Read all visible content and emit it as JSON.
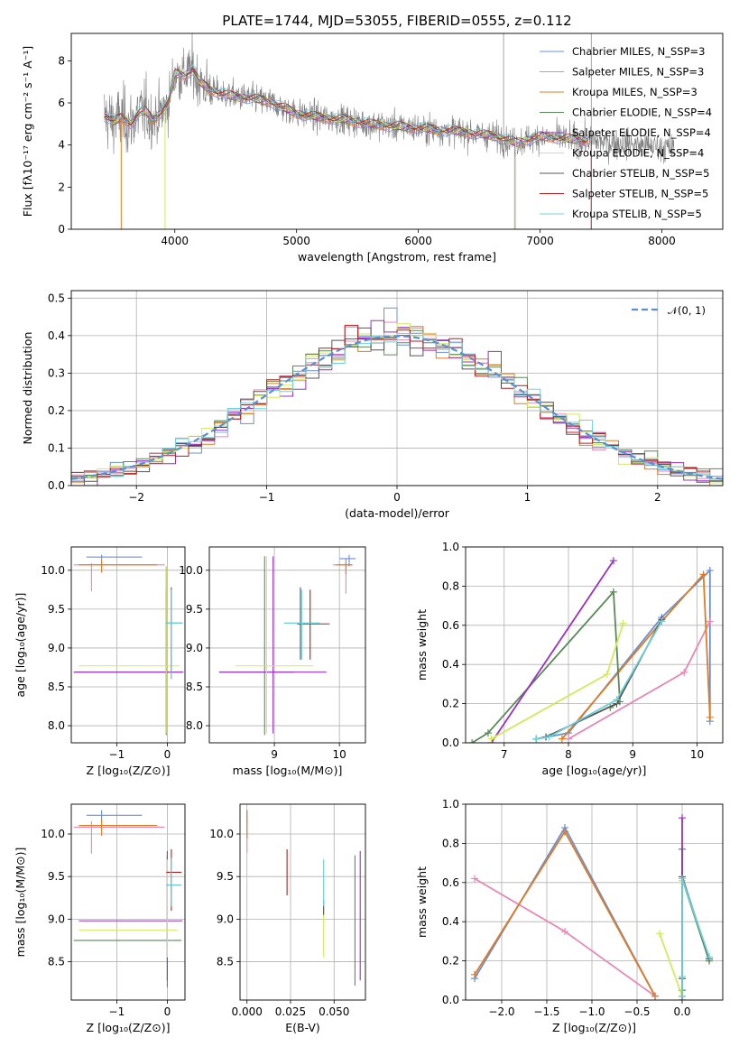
{
  "title": "PLATE=1744, MJD=53055, FIBERID=0555, z=0.112",
  "colors": {
    "spectrum": "#7f7f7f",
    "models": [
      "#6a8fd8",
      "#e887b4",
      "#e07b22",
      "#5a8a58",
      "#9b2fc4",
      "#d2ea5c",
      "#555555",
      "#b21e1e",
      "#6fd0d8"
    ],
    "normal_curve": "#5a8fd8"
  },
  "chart_data": [
    {
      "id": "spectrum",
      "type": "line",
      "xlabel": "wavelength [Angstrom, rest frame]",
      "ylabel": "Flux [fλ10⁻¹⁷ erg cm⁻² s⁻¹ A⁻¹]",
      "xlim": [
        3150,
        8500
      ],
      "ylim": [
        0,
        9.3
      ],
      "xticks": [
        4000,
        5000,
        6000,
        7000,
        8000
      ],
      "yticks": [
        0,
        2,
        4,
        6,
        8
      ],
      "grid": false,
      "legend_position": "top-right",
      "continuum": {
        "x": [
          3420,
          3500,
          3560,
          3640,
          3700,
          3760,
          3820,
          3880,
          3950,
          4000,
          4080,
          4150,
          4200,
          4300,
          4400,
          4500,
          4650,
          4800,
          5000,
          5200,
          5400,
          5600,
          5800,
          6000,
          6200,
          6400,
          6500,
          6600,
          6700,
          6800,
          7000,
          7200,
          7400,
          7600,
          7800,
          8000,
          8100
        ],
        "y": [
          5.4,
          5.1,
          5.3,
          5.0,
          5.5,
          5.6,
          5.2,
          5.5,
          6.0,
          7.4,
          7.3,
          7.6,
          7.0,
          6.6,
          6.4,
          6.3,
          6.2,
          6.0,
          5.5,
          5.3,
          5.2,
          5.0,
          4.9,
          4.8,
          4.7,
          4.6,
          4.5,
          4.45,
          4.3,
          4.1,
          4.4,
          4.3,
          4.2,
          4.1,
          4.0,
          3.9,
          3.8
        ]
      },
      "series": [
        {
          "name": "Chabrier MILES, N_SSP=3"
        },
        {
          "name": "Salpeter MILES, N_SSP=3"
        },
        {
          "name": "Kroupa MILES, N_SSP=3"
        },
        {
          "name": "Chabrier ELODIE, N_SSP=4"
        },
        {
          "name": "Salpeter ELODIE, N_SSP=4"
        },
        {
          "name": "Kroupa ELODIE, N_SSP=4"
        },
        {
          "name": "Chabrier STELIB, N_SSP=5"
        },
        {
          "name": "Salpeter STELIB, N_SSP=5"
        },
        {
          "name": "Kroupa STELIB, N_SSP=5"
        }
      ]
    },
    {
      "id": "residuals",
      "type": "line",
      "xlabel": "(data-model)/error",
      "ylabel": "Normed distribution",
      "xlim": [
        -2.5,
        2.5
      ],
      "ylim": [
        0,
        0.52
      ],
      "xticks": [
        -2,
        -1,
        0,
        1,
        2
      ],
      "yticks": [
        0.0,
        0.1,
        0.2,
        0.3,
        0.4,
        0.5
      ],
      "grid": true,
      "legend_position": "top-right",
      "legend": "𝒩(0, 1)",
      "bin_width": 0.1,
      "bin_start": -2.5
    },
    {
      "id": "age_vs_Z",
      "type": "scatter",
      "xlabel": "Z [log₁₀(Z/Z⊙)]",
      "ylabel": "age  [log₁₀(age/yr)]",
      "xlim": [
        -1.9,
        0.35
      ],
      "ylim": [
        7.78,
        10.3
      ],
      "xticks": [
        -1,
        0
      ],
      "yticks": [
        8.0,
        8.5,
        9.0,
        9.5,
        10.0
      ],
      "grid": true,
      "points": [
        {
          "c": 0,
          "x": -1.3,
          "xe": [
            -1.6,
            -0.5
          ],
          "y": 10.17,
          "ye": [
            10.15,
            10.2
          ]
        },
        {
          "c": 1,
          "x": -1.5,
          "xe": [
            -1.85,
            -0.05
          ],
          "y": 10.07,
          "ye": [
            9.73,
            10.09
          ]
        },
        {
          "c": 2,
          "x": -1.3,
          "xe": [
            -1.75,
            -0.2
          ],
          "y": 10.07,
          "ye": [
            9.97,
            10.15
          ]
        },
        {
          "c": 3,
          "x": -0.02,
          "xe": [
            -1.85,
            0.3
          ],
          "y": 8.69,
          "ye": [
            7.88,
            9.75
          ]
        },
        {
          "c": 4,
          "x": -0.02,
          "xe": [
            -1.85,
            0.32
          ],
          "y": 8.69,
          "ye": [
            7.9,
            10.05
          ]
        },
        {
          "c": 5,
          "x": -0.02,
          "xe": [
            -1.75,
            0.25
          ],
          "y": 8.77,
          "ye": [
            7.9,
            10.05
          ]
        },
        {
          "c": 6,
          "x": 0.08,
          "xe": [
            -0.02,
            0.3
          ],
          "y": 9.32,
          "ye": [
            8.6,
            9.78
          ]
        },
        {
          "c": 7,
          "x": 0.08,
          "xe": [
            -0.02,
            0.3
          ],
          "y": 9.32,
          "ye": [
            8.7,
            9.75
          ]
        },
        {
          "c": 8,
          "x": 0.08,
          "xe": [
            -0.02,
            0.3
          ],
          "y": 9.32,
          "ye": [
            8.6,
            9.75
          ]
        }
      ]
    },
    {
      "id": "age_vs_mass",
      "type": "scatter",
      "xlabel": "mass [log₁₀(M/M⊙)]",
      "ylabel": "",
      "xlim": [
        8.0,
        10.4
      ],
      "ylim": [
        7.78,
        10.3
      ],
      "xticks": [
        9,
        10
      ],
      "yticks": [
        8.0,
        8.5,
        9.0,
        9.5,
        10.0
      ],
      "grid": true,
      "points": [
        {
          "c": 0,
          "x": 10.15,
          "xe": [
            10.0,
            10.25
          ],
          "y": 10.15,
          "ye": [
            10.05,
            10.2
          ]
        },
        {
          "c": 1,
          "x": 10.1,
          "xe": [
            9.9,
            10.2
          ],
          "y": 10.07,
          "ye": [
            9.7,
            10.1
          ]
        },
        {
          "c": 2,
          "x": 10.1,
          "xe": [
            9.95,
            10.2
          ],
          "y": 10.07,
          "ye": [
            9.95,
            10.15
          ]
        },
        {
          "c": 3,
          "x": 8.85,
          "xe": [
            8.15,
            9.3
          ],
          "y": 8.69,
          "ye": [
            7.88,
            10.18
          ]
        },
        {
          "c": 4,
          "x": 8.98,
          "xe": [
            8.15,
            9.8
          ],
          "y": 8.69,
          "ye": [
            7.9,
            10.18
          ]
        },
        {
          "c": 5,
          "x": 8.88,
          "xe": [
            8.4,
            9.6
          ],
          "y": 8.77,
          "ye": [
            7.9,
            10.18
          ]
        },
        {
          "c": 6,
          "x": 9.4,
          "xe": [
            9.15,
            9.7
          ],
          "y": 9.32,
          "ye": [
            8.85,
            9.78
          ]
        },
        {
          "c": 7,
          "x": 9.55,
          "xe": [
            9.35,
            9.85
          ],
          "y": 9.31,
          "ye": [
            8.85,
            9.75
          ]
        },
        {
          "c": 8,
          "x": 9.42,
          "xe": [
            9.15,
            9.7
          ],
          "y": 9.32,
          "ye": [
            8.85,
            9.75
          ]
        }
      ]
    },
    {
      "id": "weight_vs_age",
      "type": "line",
      "xlabel": "age  [log₁₀(age/yr)]",
      "ylabel": "mass weight",
      "xlim": [
        6.4,
        10.4
      ],
      "ylim": [
        0,
        1.0
      ],
      "xticks": [
        7,
        8,
        9,
        10
      ],
      "yticks": [
        0.0,
        0.2,
        0.4,
        0.6,
        0.8,
        1.0
      ],
      "grid": true,
      "series": [
        {
          "c": 0,
          "x": [
            7.5,
            8.0,
            9.45,
            10.2,
            10.2
          ],
          "y": [
            0.02,
            0.05,
            0.64,
            0.88,
            0.11
          ]
        },
        {
          "c": 1,
          "x": [
            8.0,
            9.8,
            10.2
          ],
          "y": [
            0.02,
            0.36,
            0.62
          ]
        },
        {
          "c": 2,
          "x": [
            7.9,
            9.45,
            10.1,
            10.2
          ],
          "y": [
            0.02,
            0.62,
            0.86,
            0.13
          ]
        },
        {
          "c": 3,
          "x": [
            6.5,
            6.75,
            8.7,
            8.8,
            8.65
          ],
          "y": [
            0.0,
            0.05,
            0.77,
            0.21,
            0.18
          ]
        },
        {
          "c": 4,
          "x": [
            6.8,
            8.7
          ],
          "y": [
            0.0,
            0.93
          ]
        },
        {
          "c": 5,
          "x": [
            6.8,
            8.6,
            8.85
          ],
          "y": [
            0.02,
            0.35,
            0.61
          ]
        },
        {
          "c": 6,
          "x": [
            7.5,
            7.65,
            8.75,
            9.45
          ],
          "y": [
            0.02,
            0.03,
            0.2,
            0.63
          ]
        },
        {
          "c": 8,
          "x": [
            7.5,
            7.7,
            8.75,
            9.45
          ],
          "y": [
            0.02,
            0.03,
            0.22,
            0.62
          ]
        }
      ]
    },
    {
      "id": "mass_vs_Z",
      "type": "scatter",
      "xlabel": "Z [log₁₀(Z/Z⊙)]",
      "ylabel": "mass [log₁₀(M/M⊙)]",
      "xlim": [
        -1.9,
        0.35
      ],
      "ylim": [
        8.05,
        10.35
      ],
      "xticks": [
        -1,
        0
      ],
      "yticks": [
        8.5,
        9.0,
        9.5,
        10.0
      ],
      "grid": true,
      "points": [
        {
          "c": 0,
          "x": -1.3,
          "xe": [
            -1.6,
            -0.5
          ],
          "y": 10.22,
          "ye": [
            10.15,
            10.28
          ]
        },
        {
          "c": 1,
          "x": -1.5,
          "xe": [
            -1.85,
            -0.05
          ],
          "y": 10.08,
          "ye": [
            9.77,
            10.15
          ]
        },
        {
          "c": 2,
          "x": -1.3,
          "xe": [
            -1.75,
            -0.2
          ],
          "y": 10.1,
          "ye": [
            9.98,
            10.18
          ]
        },
        {
          "c": 3,
          "x": 0.0,
          "xe": [
            -1.85,
            0.28
          ],
          "y": 8.75,
          "ye": [
            8.2,
            9.75
          ]
        },
        {
          "c": 4,
          "x": 0.0,
          "xe": [
            -1.75,
            0.3
          ],
          "y": 8.98,
          "ye": [
            8.28,
            9.8
          ]
        },
        {
          "c": 5,
          "x": 0.0,
          "xe": [
            -1.75,
            0.2
          ],
          "y": 8.87,
          "ye": [
            8.55,
            9.7
          ]
        },
        {
          "c": 6,
          "x": 0.08,
          "xe": [
            -0.02,
            0.28
          ],
          "y": 9.4,
          "ye": [
            9.15,
            9.72
          ]
        },
        {
          "c": 7,
          "x": 0.08,
          "xe": [
            -0.02,
            0.28
          ],
          "y": 9.55,
          "ye": [
            9.1,
            9.82
          ]
        },
        {
          "c": 8,
          "x": 0.08,
          "xe": [
            -0.02,
            0.28
          ],
          "y": 9.4,
          "ye": [
            9.15,
            9.72
          ]
        }
      ]
    },
    {
      "id": "mass_vs_ebv",
      "type": "scatter",
      "xlabel": "E(B-V)",
      "ylabel": "",
      "xlim": [
        -0.004,
        0.068
      ],
      "ylim": [
        8.05,
        10.35
      ],
      "xticks": [
        0.0,
        0.025,
        0.05
      ],
      "xticklabels": [
        "0.000",
        "0.025",
        "0.050"
      ],
      "yticks": [
        8.5,
        9.0,
        9.5,
        10.0
      ],
      "grid": true,
      "points": [
        {
          "c": 0,
          "x": 0.0,
          "xe": [
            0.0,
            0.0
          ],
          "y": 10.2,
          "ye": [
            10.12,
            10.28
          ]
        },
        {
          "c": 1,
          "x": 0.0,
          "xe": [
            0.0,
            0.0
          ],
          "y": 10.08,
          "ye": [
            9.78,
            10.18
          ]
        },
        {
          "c": 2,
          "x": 0.0,
          "xe": [
            0.0,
            0.0
          ],
          "y": 10.12,
          "ye": [
            9.95,
            10.28
          ]
        },
        {
          "c": 3,
          "x": 0.062,
          "xe": [
            0.062,
            0.062
          ],
          "y": 8.75,
          "ye": [
            8.22,
            9.75
          ]
        },
        {
          "c": 4,
          "x": 0.065,
          "xe": [
            0.065,
            0.065
          ],
          "y": 9.0,
          "ye": [
            8.28,
            9.8
          ]
        },
        {
          "c": 5,
          "x": 0.044,
          "xe": [
            0.044,
            0.044
          ],
          "y": 9.1,
          "ye": [
            8.55,
            9.7
          ]
        },
        {
          "c": 6,
          "x": 0.044,
          "xe": [
            0.044,
            0.044
          ],
          "y": 9.15,
          "ye": [
            9.05,
            9.22
          ]
        },
        {
          "c": 7,
          "x": 0.023,
          "xe": [
            0.023,
            0.023
          ],
          "y": 9.55,
          "ye": [
            9.28,
            9.82
          ]
        },
        {
          "c": 8,
          "x": 0.044,
          "xe": [
            0.044,
            0.044
          ],
          "y": 9.4,
          "ye": [
            9.15,
            9.7
          ]
        }
      ]
    },
    {
      "id": "weight_vs_Z",
      "type": "line",
      "xlabel": "Z [log₁₀(Z/Z⊙)]",
      "ylabel": "mass weight",
      "xlim": [
        -2.4,
        0.45
      ],
      "ylim": [
        0,
        1.0
      ],
      "xticks": [
        -2.0,
        -1.5,
        -1.0,
        -0.5,
        0.0
      ],
      "xticklabels": [
        "−2.0",
        "−1.5",
        "−1.0",
        "−0.5",
        "0.0"
      ],
      "yticks": [
        0.0,
        0.2,
        0.4,
        0.6,
        0.8,
        1.0
      ],
      "grid": true,
      "series": [
        {
          "c": 0,
          "x": [
            -2.3,
            -1.3,
            -0.3
          ],
          "y": [
            0.11,
            0.88,
            0.02
          ]
        },
        {
          "c": 1,
          "x": [
            -2.3,
            -1.3,
            -0.3
          ],
          "y": [
            0.62,
            0.35,
            0.02
          ]
        },
        {
          "c": 2,
          "x": [
            -2.3,
            -1.3,
            -0.3
          ],
          "y": [
            0.13,
            0.86,
            0.02
          ]
        },
        {
          "c": 3,
          "x": [
            0.0,
            0.0,
            0.0,
            0.3
          ],
          "y": [
            0.05,
            0.77,
            0.62,
            0.2
          ]
        },
        {
          "c": 4,
          "x": [
            0.0,
            0.0
          ],
          "y": [
            0.0,
            0.93
          ]
        },
        {
          "c": 5,
          "x": [
            -0.25,
            0.0,
            0.0
          ],
          "y": [
            0.34,
            0.02,
            0.61
          ]
        },
        {
          "c": 6,
          "x": [
            0.0,
            0.0,
            0.0,
            0.3
          ],
          "y": [
            0.02,
            0.11,
            0.63,
            0.21
          ]
        },
        {
          "c": 8,
          "x": [
            0.0,
            0.0,
            0.0,
            0.3
          ],
          "y": [
            0.02,
            0.12,
            0.62,
            0.22
          ]
        }
      ]
    }
  ]
}
